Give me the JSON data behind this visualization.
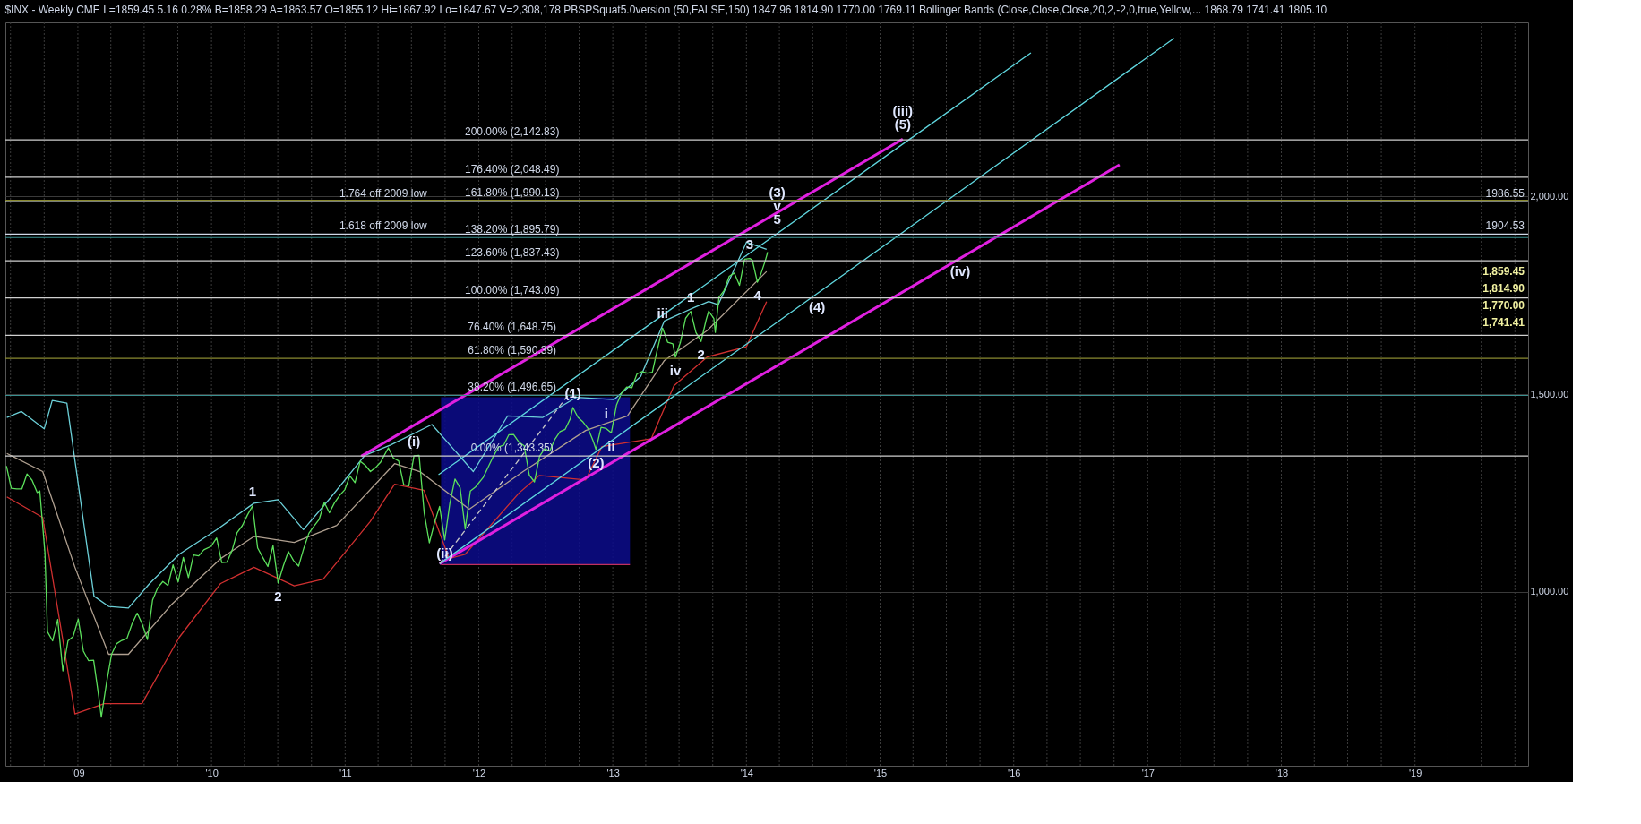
{
  "chart_data": {
    "type": "line",
    "title": "$INX - Weekly  CME  L=1859.45  5.16  0.28%  B=1858.29  A=1863.57  O=1855.12  Hi=1867.92  Lo=1847.67  V=2,308,178  PBSPSquat5.0version (50,FALSE,150)  1847.96  1814.90  1770.00  1769.11  Bollinger Bands (Close,Close,Close,20,2,-2,0,true,Yellow,...  1868.79  1741.41  1805.10",
    "xlim": [
      "2008-06-17",
      "2019-11-06"
    ],
    "ylim": [
      560,
      2440
    ],
    "xticks": [
      {
        "value": "2008-07-01",
        "label": null
      },
      {
        "value": "2008-10-01",
        "label": null
      },
      {
        "value": "2009-01-01",
        "label": "'09"
      },
      {
        "value": "2009-04-01",
        "label": null
      },
      {
        "value": "2009-07-01",
        "label": null
      },
      {
        "value": "2009-10-01",
        "label": null
      },
      {
        "value": "2010-01-01",
        "label": "'10"
      },
      {
        "value": "2010-04-01",
        "label": null
      },
      {
        "value": "2010-07-01",
        "label": null
      },
      {
        "value": "2010-10-01",
        "label": null
      },
      {
        "value": "2011-01-01",
        "label": "'11"
      },
      {
        "value": "2011-04-01",
        "label": null
      },
      {
        "value": "2011-07-01",
        "label": null
      },
      {
        "value": "2011-10-01",
        "label": null
      },
      {
        "value": "2012-01-01",
        "label": "'12"
      },
      {
        "value": "2012-04-01",
        "label": null
      },
      {
        "value": "2012-07-01",
        "label": null
      },
      {
        "value": "2012-10-01",
        "label": null
      },
      {
        "value": "2013-01-01",
        "label": "'13"
      },
      {
        "value": "2013-04-01",
        "label": null
      },
      {
        "value": "2013-07-01",
        "label": null
      },
      {
        "value": "2013-10-01",
        "label": null
      },
      {
        "value": "2014-01-01",
        "label": "'14"
      },
      {
        "value": "2014-04-01",
        "label": null
      },
      {
        "value": "2014-07-01",
        "label": null
      },
      {
        "value": "2014-10-01",
        "label": null
      },
      {
        "value": "2015-01-01",
        "label": "'15"
      },
      {
        "value": "2015-04-01",
        "label": null
      },
      {
        "value": "2015-07-01",
        "label": null
      },
      {
        "value": "2015-10-01",
        "label": null
      },
      {
        "value": "2016-01-01",
        "label": "'16"
      },
      {
        "value": "2016-04-01",
        "label": null
      },
      {
        "value": "2016-07-01",
        "label": null
      },
      {
        "value": "2016-10-01",
        "label": null
      },
      {
        "value": "2017-01-01",
        "label": "'17"
      },
      {
        "value": "2017-04-01",
        "label": null
      },
      {
        "value": "2017-07-01",
        "label": null
      },
      {
        "value": "2017-10-01",
        "label": null
      },
      {
        "value": "2018-01-01",
        "label": "'18"
      },
      {
        "value": "2018-04-01",
        "label": null
      },
      {
        "value": "2018-07-01",
        "label": null
      },
      {
        "value": "2018-10-01",
        "label": null
      },
      {
        "value": "2019-01-01",
        "label": "'19"
      },
      {
        "value": "2019-04-01",
        "label": null
      },
      {
        "value": "2019-07-01",
        "label": null
      },
      {
        "value": "2019-10-01",
        "label": null
      }
    ],
    "yticks": [
      {
        "value": 1000,
        "label": "1,000.00"
      },
      {
        "value": 1500,
        "label": "1,500.00"
      },
      {
        "value": 2000,
        "label": "2,000.00"
      }
    ],
    "grid": true,
    "series": [
      {
        "type": "area",
        "color": "#0c0c8c",
        "x": [
          "2011-09-20",
          "2013-02-17"
        ],
        "values": [
          1492,
          1492
        ]
      },
      {
        "color": "#c03060",
        "x": [
          "2011-09-20",
          "2013-02-17"
        ],
        "values": [
          1069,
          1069
        ]
      },
      {
        "color": "#6cd0d8",
        "x": [
          "2008-06-21",
          "2008-07-31",
          "2008-10-01",
          "2008-10-23",
          "2008-12-02",
          "2009-02-14",
          "2009-03-26",
          "2009-05-19",
          "2009-07-16",
          "2009-10-05",
          "2010-01-15",
          "2010-04-27",
          "2010-07-02",
          "2010-09-09",
          "2010-11-24",
          "2011-02-24",
          "2011-05-05",
          "2011-08-26",
          "2011-12-17",
          "2012-03-20",
          "2012-06-24",
          "2012-09-24",
          "2013-01-04",
          "2013-03-18",
          "2013-05-22",
          "2013-08-11",
          "2013-09-20",
          "2013-10-16",
          "2014-01-01",
          "2014-02-25"
        ],
        "values": [
          1441,
          1456,
          1412,
          1484,
          1477,
          989,
          963,
          959,
          1021,
          1095,
          1157,
          1224,
          1233,
          1157,
          1240,
          1345,
          1371,
          1423,
          1304,
          1445,
          1441,
          1492,
          1486,
          1544,
          1685,
          1719,
          1734,
          1726,
          1884,
          1866
        ]
      },
      {
        "color": "#b0a090",
        "x": [
          "2008-06-21",
          "2008-09-27",
          "2008-12-24",
          "2009-03-26",
          "2009-05-19",
          "2009-09-13",
          "2010-01-26",
          "2010-04-27",
          "2010-08-15",
          "2010-12-09",
          "2011-05-16",
          "2011-07-24",
          "2011-12-06",
          "2012-05-01",
          "2012-10-19",
          "2013-02-10",
          "2013-05-22",
          "2013-09-16",
          "2014-02-25"
        ],
        "values": [
          1350,
          1304,
          1062,
          842,
          842,
          967,
          1084,
          1140,
          1125,
          1168,
          1324,
          1304,
          1209,
          1304,
          1408,
          1445,
          1585,
          1661,
          1810
        ]
      },
      {
        "color": "#d03030",
        "x": [
          "2008-06-21",
          "2008-09-27",
          "2008-12-24",
          "2009-03-14",
          "2009-06-25",
          "2009-10-05",
          "2010-01-26",
          "2010-04-27",
          "2010-08-15",
          "2010-11-02",
          "2011-03-10",
          "2011-05-16",
          "2011-08-04",
          "2011-10-12",
          "2011-11-25",
          "2012-04-20",
          "2012-06-14",
          "2012-10-19",
          "2012-12-02",
          "2013-04-16",
          "2013-06-17",
          "2013-09-16",
          "2014-01-01",
          "2014-02-25"
        ],
        "values": [
          1240,
          1188,
          691,
          717,
          717,
          885,
          1021,
          1062,
          1015,
          1032,
          1177,
          1272,
          1257,
          1084,
          1095,
          1250,
          1294,
          1283,
          1367,
          1387,
          1521,
          1594,
          1620,
          1734
        ]
      },
      {
        "color": "#5ce05c",
        "x": [
          "2008-06-20",
          "2008-07-03",
          "2008-07-18",
          "2008-08-01",
          "2008-08-15",
          "2008-08-29",
          "2008-09-12",
          "2008-09-19",
          "2008-10-03",
          "2008-10-10",
          "2008-10-24",
          "2008-11-07",
          "2008-11-21",
          "2008-12-05",
          "2008-12-19",
          "2009-01-02",
          "2009-01-16",
          "2009-01-30",
          "2009-02-13",
          "2009-02-27",
          "2009-03-06",
          "2009-03-20",
          "2009-04-03",
          "2009-04-17",
          "2009-05-01",
          "2009-05-15",
          "2009-05-29",
          "2009-06-12",
          "2009-06-26",
          "2009-07-10",
          "2009-07-24",
          "2009-08-07",
          "2009-08-21",
          "2009-09-04",
          "2009-09-18",
          "2009-10-02",
          "2009-10-16",
          "2009-10-30",
          "2009-11-13",
          "2009-11-27",
          "2009-12-11",
          "2009-12-31",
          "2010-01-15",
          "2010-01-29",
          "2010-02-12",
          "2010-02-26",
          "2010-03-12",
          "2010-03-26",
          "2010-04-09",
          "2010-04-23",
          "2010-05-07",
          "2010-05-21",
          "2010-06-04",
          "2010-06-18",
          "2010-07-02",
          "2010-07-16",
          "2010-07-30",
          "2010-08-13",
          "2010-08-27",
          "2010-09-10",
          "2010-09-24",
          "2010-10-08",
          "2010-10-22",
          "2010-11-05",
          "2010-11-19",
          "2010-12-03",
          "2010-12-17",
          "2010-12-31",
          "2011-01-14",
          "2011-01-28",
          "2011-02-11",
          "2011-02-25",
          "2011-03-11",
          "2011-03-25",
          "2011-04-08",
          "2011-04-29",
          "2011-05-13",
          "2011-05-27",
          "2011-06-10",
          "2011-06-24",
          "2011-07-08",
          "2011-07-22",
          "2011-08-05",
          "2011-08-19",
          "2011-09-02",
          "2011-09-16",
          "2011-09-30",
          "2011-10-14",
          "2011-10-28",
          "2011-11-11",
          "2011-11-25",
          "2011-12-09",
          "2011-12-23",
          "2012-01-13",
          "2012-01-27",
          "2012-02-10",
          "2012-02-24",
          "2012-03-09",
          "2012-03-23",
          "2012-04-05",
          "2012-04-20",
          "2012-05-04",
          "2012-05-18",
          "2012-06-01",
          "2012-06-15",
          "2012-06-29",
          "2012-07-13",
          "2012-07-27",
          "2012-08-10",
          "2012-08-24",
          "2012-09-07",
          "2012-09-14",
          "2012-09-28",
          "2012-10-12",
          "2012-10-26",
          "2012-11-09",
          "2012-11-16",
          "2012-11-30",
          "2012-12-14",
          "2012-12-28",
          "2013-01-11",
          "2013-01-25",
          "2013-02-08",
          "2013-02-22",
          "2013-03-08",
          "2013-03-22",
          "2013-04-05",
          "2013-04-19",
          "2013-05-03",
          "2013-05-17",
          "2013-05-31",
          "2013-06-14",
          "2013-06-21",
          "2013-07-05",
          "2013-07-19",
          "2013-08-02",
          "2013-08-16",
          "2013-08-30",
          "2013-09-13",
          "2013-09-20",
          "2013-10-04",
          "2013-10-08",
          "2013-10-18",
          "2013-11-01",
          "2013-11-15",
          "2013-11-29",
          "2013-12-13",
          "2013-12-27",
          "2014-01-10",
          "2014-01-17",
          "2014-01-31",
          "2014-02-07",
          "2014-02-21",
          "2014-02-28"
        ],
        "values": [
          1318,
          1262,
          1260,
          1260,
          1298,
          1282,
          1251,
          1255,
          1099,
          899,
          876,
          930,
          800,
          876,
          887,
          931,
          850,
          826,
          827,
          735,
          683,
          768,
          842,
          869,
          877,
          882,
          919,
          946,
          918,
          879,
          979,
          1010,
          1026,
          1016,
          1068,
          1025,
          1087,
          1036,
          1093,
          1091,
          1106,
          1115,
          1136,
          1074,
          1075,
          1104,
          1150,
          1167,
          1194,
          1217,
          1111,
          1087,
          1064,
          1117,
          1022,
          1065,
          1102,
          1079,
          1065,
          1110,
          1148,
          1166,
          1183,
          1226,
          1200,
          1225,
          1244,
          1258,
          1293,
          1276,
          1330,
          1320,
          1304,
          1314,
          1328,
          1364,
          1338,
          1331,
          1271,
          1268,
          1344,
          1345,
          1199,
          1124,
          1174,
          1216,
          1131,
          1224,
          1285,
          1263,
          1159,
          1255,
          1265,
          1289,
          1316,
          1343,
          1366,
          1371,
          1397,
          1398,
          1378,
          1369,
          1295,
          1278,
          1343,
          1362,
          1356,
          1386,
          1405,
          1411,
          1438,
          1466,
          1441,
          1429,
          1412,
          1380,
          1360,
          1416,
          1413,
          1402,
          1472,
          1503,
          1518,
          1516,
          1551,
          1557,
          1553,
          1555,
          1614,
          1667,
          1631,
          1627,
          1593,
          1632,
          1692,
          1709,
          1656,
          1633,
          1688,
          1710,
          1691,
          1656,
          1745,
          1762,
          1798,
          1806,
          1775,
          1841,
          1843,
          1839,
          1783,
          1797,
          1836,
          1859
        ]
      },
      {
        "color": "#e020e0",
        "x": [
          "2011-02-14",
          "2015-03-04"
        ],
        "values": [
          1343,
          2145
        ]
      },
      {
        "color": "#e020e0",
        "x": [
          "2011-09-16",
          "2016-10-16"
        ],
        "values": [
          1071,
          2080
        ]
      },
      {
        "color": "#60d8e0",
        "x": [
          "2011-09-13",
          "2016-02-17"
        ],
        "values": [
          1296,
          2363
        ]
      },
      {
        "color": "#60d8e0",
        "x": [
          "2011-09-16",
          "2017-03-14"
        ],
        "values": [
          1071,
          2400
        ]
      },
      {
        "color": "#c8c8c8",
        "line_style": "dashed",
        "x": [
          "2011-09-16",
          "2012-09-13"
        ],
        "values": [
          1071,
          1512
        ]
      }
    ],
    "ref_lines": [
      {
        "axis": "y",
        "value": 2142.83,
        "color": "#d0d0d0"
      },
      {
        "axis": "y",
        "value": 2048.49,
        "color": "#d0d0d0"
      },
      {
        "axis": "y",
        "value": 1990.13,
        "color": "#8a8a30"
      },
      {
        "axis": "y",
        "value": 1986.55,
        "label": "1986.55",
        "color": "#d0d8e8"
      },
      {
        "axis": "y",
        "value": 1904.53,
        "label": "1904.53",
        "color": "#d0d8e8"
      },
      {
        "axis": "y",
        "value": 1895.79,
        "color": "#3a9090"
      },
      {
        "axis": "y",
        "value": 1837.43,
        "color": "#d0d0d0"
      },
      {
        "axis": "y",
        "value": 1743.09,
        "color": "#d0d0d0"
      },
      {
        "axis": "y",
        "value": 1648.75,
        "color": "#d0d0d0"
      },
      {
        "axis": "y",
        "value": 1590.39,
        "color": "#8a8a30"
      },
      {
        "axis": "y",
        "value": 1496.65,
        "color": "#3a9090"
      },
      {
        "axis": "y",
        "value": 1343.35,
        "color": "#d0d0d0"
      }
    ],
    "annotations": [
      {
        "text": "200.00% (2,142.83)",
        "x": "2012-04-01",
        "y": 2142.83
      },
      {
        "text": "176.40% (2,048.49)",
        "x": "2012-04-01",
        "y": 2048.49
      },
      {
        "text": "161.80% (1,990.13)",
        "x": "2012-04-01",
        "y": 1990.13
      },
      {
        "text": "1.764 off 2009 low",
        "x": "2011-04-15",
        "y": 1986.55
      },
      {
        "text": "1.618 off 2009 low",
        "x": "2011-04-15",
        "y": 1904.53
      },
      {
        "text": "138.20% (1,895.79)",
        "x": "2012-04-01",
        "y": 1895.79
      },
      {
        "text": "123.60% (1,837.43)",
        "x": "2012-04-01",
        "y": 1837.43
      },
      {
        "text": "100.00% (1,743.09)",
        "x": "2012-04-01",
        "y": 1743.09
      },
      {
        "text": "76.40% (1,648.75)",
        "x": "2012-04-01",
        "y": 1648.75
      },
      {
        "text": "61.80% (1,590.39)",
        "x": "2012-04-01",
        "y": 1590.39
      },
      {
        "text": "38.20% (1,496.65)",
        "x": "2012-04-01",
        "y": 1496.65
      },
      {
        "text": "0.00% (1,343.35)",
        "x": "2012-04-01",
        "y": 1343.35
      },
      {
        "text": "1",
        "x": "2010-04-23",
        "y": 1217
      },
      {
        "text": "2",
        "x": "2010-07-02",
        "y": 1022
      },
      {
        "text": "(i)",
        "x": "2011-07-08",
        "y": 1344
      },
      {
        "text": "(ii)",
        "x": "2011-09-30",
        "y": 1131
      },
      {
        "text": "(1)",
        "x": "2012-09-14",
        "y": 1466
      },
      {
        "text": "(2)",
        "x": "2012-11-16",
        "y": 1360
      },
      {
        "text": "i",
        "x": "2012-12-14",
        "y": 1413
      },
      {
        "text": "ii",
        "x": "2012-12-28",
        "y": 1402
      },
      {
        "text": "iii",
        "x": "2013-05-17",
        "y": 1667
      },
      {
        "text": "iv",
        "x": "2013-06-21",
        "y": 1593
      },
      {
        "text": "1",
        "x": "2013-08-02",
        "y": 1709
      },
      {
        "text": "2",
        "x": "2013-08-30",
        "y": 1633
      },
      {
        "text": "3",
        "x": "2014-01-10",
        "y": 1843
      },
      {
        "text": "4",
        "x": "2014-01-31",
        "y": 1783
      },
      {
        "text": "5",
        "x": "2014-03-26",
        "y": 1905
      },
      {
        "text": "v",
        "x": "2014-03-26",
        "y": 1905
      },
      {
        "text": "(3)",
        "x": "2014-03-26",
        "y": 1905
      },
      {
        "text": "(4)",
        "x": "2014-07-13",
        "y": 1754
      },
      {
        "text": "(5)",
        "x": "2015-03-04",
        "y": 2145
      },
      {
        "text": "(iii)",
        "x": "2015-03-04",
        "y": 2145
      },
      {
        "text": "(iv)",
        "x": "2015-08-08",
        "y": 1844
      },
      "1,859.45",
      "1,814.90",
      "1,770.00",
      "1,741.41"
    ]
  }
}
